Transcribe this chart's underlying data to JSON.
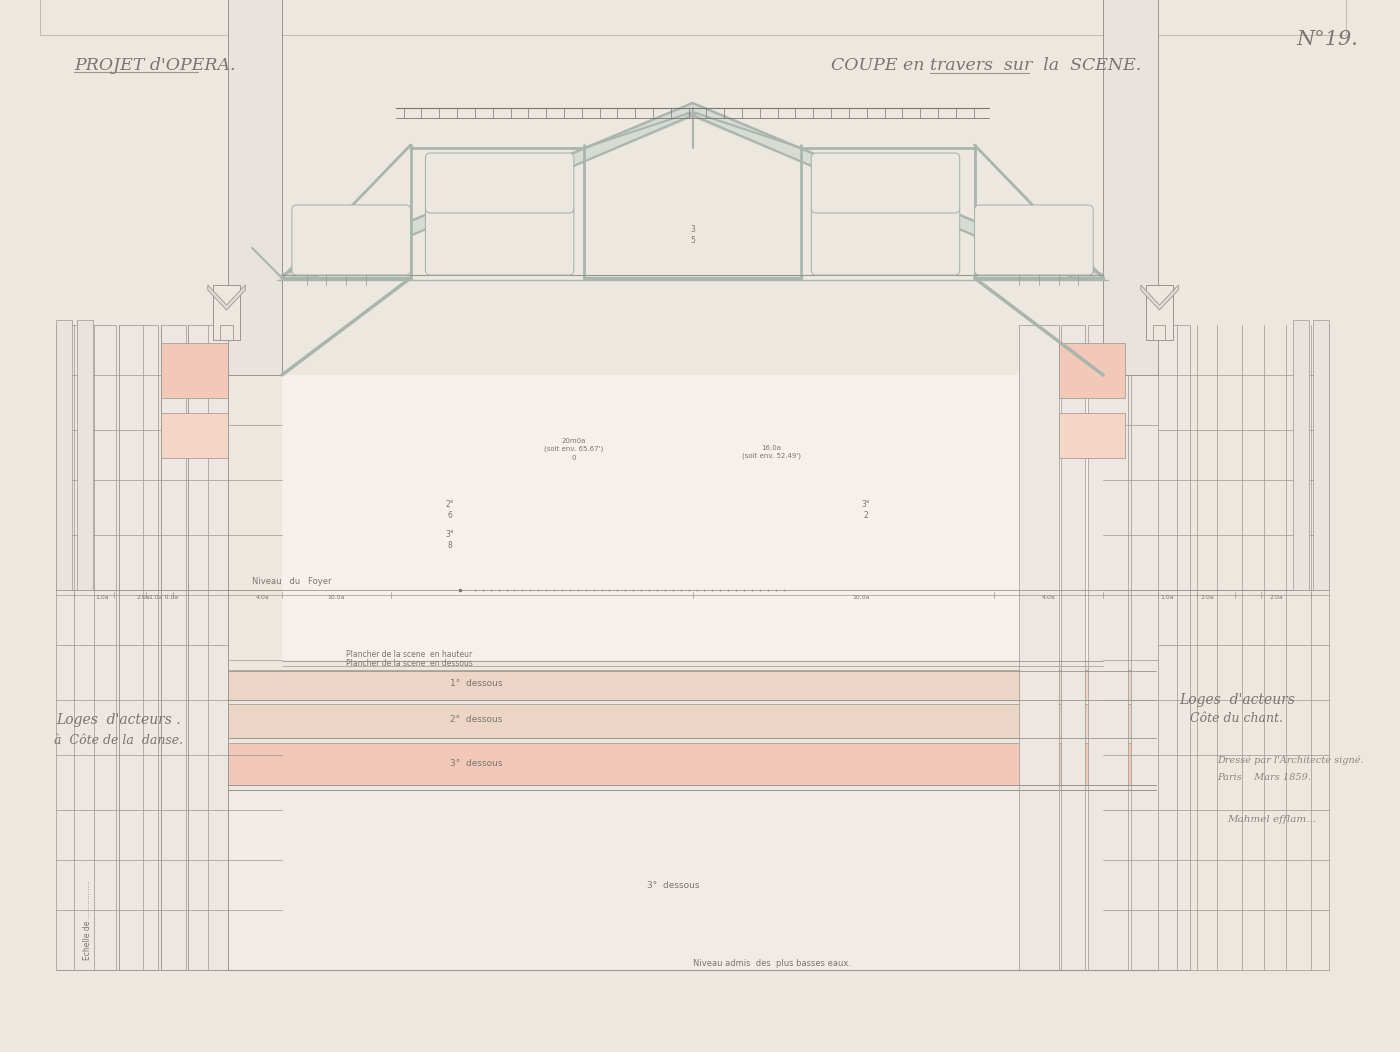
{
  "bg": "#ede8df",
  "lc": "#9a9590",
  "lc_dark": "#7a7570",
  "lc_light": "#b0aba5",
  "sc": "#aab5ae",
  "sc_fill": "#c8d5ce",
  "pink1": "#f2c8b8",
  "pink2": "#edd5c5",
  "pink_side": "#f5d5c5",
  "title_left": "PROJET d'OPERA.",
  "title_right": "COUPE en travers  sur  la  SCENE.",
  "number_label": "N°19.",
  "bottom_left_1": "Loges  d'acteurs .",
  "bottom_left_2": "à  Côte de la  danse.",
  "bottom_right_1": "Loges  d'acteurs",
  "bottom_right_2": "Côte du chant.",
  "bottom_right_3": "Dressé par l'Architecte signé.",
  "bottom_right_4": "Paris    Mars 1859.",
  "fig_width": 14.0,
  "fig_height": 10.52
}
